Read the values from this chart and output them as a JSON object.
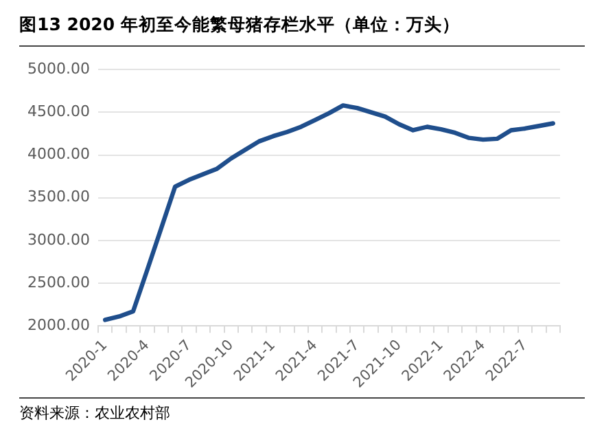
{
  "chart_data": {
    "type": "line",
    "title": "图13 2020 年初至今能繁母猪存栏水平（单位：万头）",
    "annotations": [
      "资料来源：农业农村部"
    ],
    "categories": [
      "2020-1",
      null,
      null,
      "2020-4",
      null,
      null,
      "2020-7",
      null,
      null,
      "2020-10",
      null,
      null,
      "2021-1",
      null,
      null,
      "2021-4",
      null,
      null,
      "2021-7",
      null,
      null,
      "2021-10",
      null,
      null,
      "2022-1",
      null,
      null,
      "2022-4",
      null,
      null,
      "2022-7",
      null,
      null
    ],
    "series": [
      {
        "color": "#1f4e8c",
        "values": [
          2070,
          2110,
          2170,
          2650,
          3140,
          3630,
          3710,
          3775,
          3840,
          3960,
          4060,
          4160,
          4220,
          4270,
          4330,
          4410,
          4490,
          4580,
          4550,
          4500,
          4450,
          4360,
          4290,
          4330,
          4300,
          4260,
          4200,
          4180,
          4190,
          4290,
          4310,
          4340,
          4370
        ]
      }
    ],
    "ylim": [
      2000,
      5000
    ],
    "yticks": [
      {
        "value": 2000,
        "label": "2000.00"
      },
      {
        "value": 2500,
        "label": "2500.00"
      },
      {
        "value": 3000,
        "label": "3000.00"
      },
      {
        "value": 3500,
        "label": "3500.00"
      },
      {
        "value": 4000,
        "label": "4000.00"
      },
      {
        "value": 4500,
        "label": "4500.00"
      },
      {
        "value": 5000,
        "label": "5000.00"
      }
    ],
    "grid": "y",
    "legend": false,
    "marker": "none",
    "line_style": "solid"
  }
}
